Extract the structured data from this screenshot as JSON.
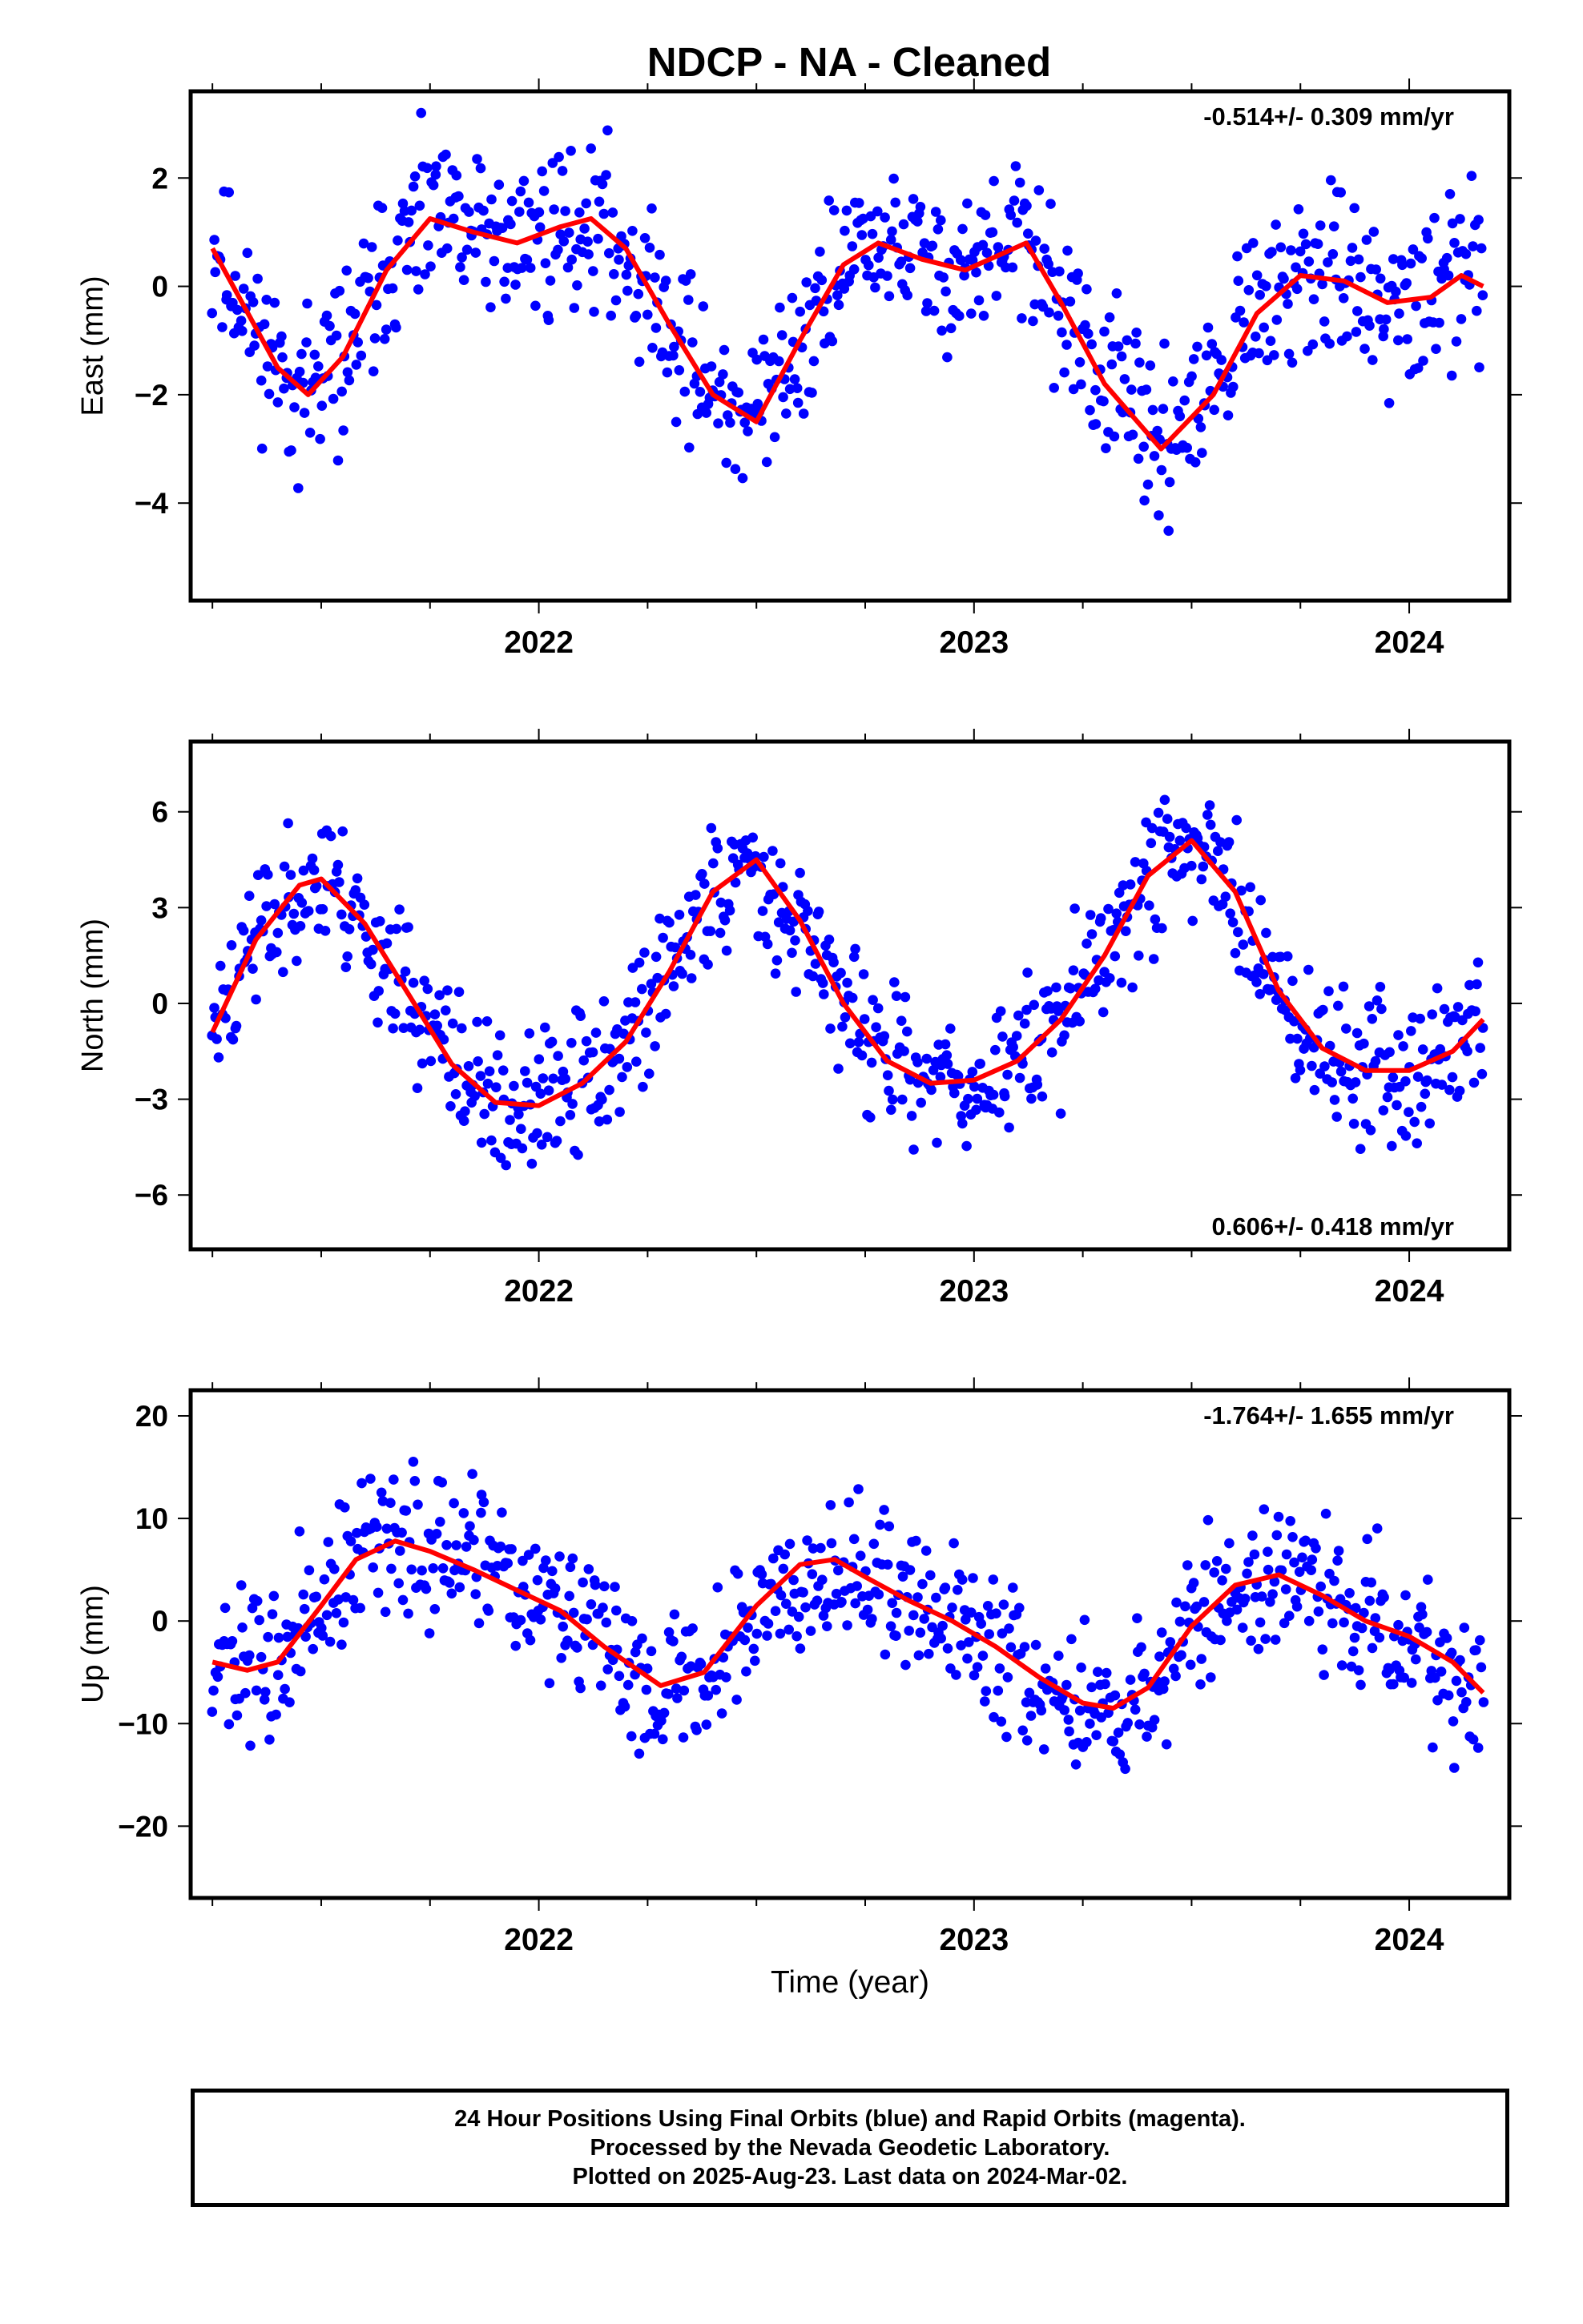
{
  "title": "NDCP  - NA - Cleaned",
  "xlabel": "Time (year)",
  "footer": {
    "line1": "24 Hour Positions Using Final Orbits (blue) and Rapid Orbits (magenta).",
    "line2": "Processed by the Nevada Geodetic Laboratory.",
    "line3": "Plotted on 2025-Aug-23. Last data on 2024-Mar-02."
  },
  "colors": {
    "data": "#0000ff",
    "fit": "#ff0000",
    "frame": "#000000"
  },
  "chart_data": [
    {
      "type": "scatter",
      "ylabel": "East (mm)",
      "rate_text": "-0.514+/- 0.309 mm/yr",
      "rate_position": "top-right",
      "xlim": [
        2021.2,
        2024.23
      ],
      "ylim": [
        -5.8,
        3.6
      ],
      "xticks": [
        2022,
        2023,
        2024
      ],
      "xtick_labels": [
        "2022",
        "2023",
        "2024"
      ],
      "yticks": [
        -4,
        -2,
        0,
        2
      ],
      "ytick_labels": [
        "−4",
        "−2",
        "0",
        "2"
      ],
      "fit": {
        "x": [
          2021.25,
          2021.4,
          2021.47,
          2021.55,
          2021.65,
          2021.75,
          2021.85,
          2021.95,
          2022.05,
          2022.12,
          2022.2,
          2022.3,
          2022.4,
          2022.5,
          2022.6,
          2022.7,
          2022.78,
          2022.88,
          2022.98,
          2023.05,
          2023.12,
          2023.2,
          2023.3,
          2023.43,
          2023.55,
          2023.65,
          2023.75,
          2023.85,
          2023.95,
          2024.05,
          2024.12,
          2024.17
        ],
        "y": [
          0.7,
          -1.5,
          -2.0,
          -1.3,
          0.3,
          1.25,
          1.0,
          0.8,
          1.1,
          1.25,
          0.7,
          -0.7,
          -2.0,
          -2.5,
          -1.0,
          0.4,
          0.8,
          0.5,
          0.3,
          0.55,
          0.8,
          -0.3,
          -1.8,
          -3.0,
          -2.0,
          -0.5,
          0.2,
          0.1,
          -0.3,
          -0.2,
          0.2,
          0.0
        ]
      },
      "scatter": {
        "spread": 0.75,
        "count": 760,
        "seed": 11
      }
    },
    {
      "type": "scatter",
      "ylabel": "North (mm)",
      "rate_text": "0.606+/- 0.418 mm/yr",
      "rate_position": "bottom-right",
      "xlim": [
        2021.2,
        2024.23
      ],
      "ylim": [
        -7.7,
        8.2
      ],
      "xticks": [
        2022,
        2023,
        2024
      ],
      "xtick_labels": [
        "2022",
        "2023",
        "2024"
      ],
      "yticks": [
        -6,
        -3,
        0,
        3,
        6
      ],
      "ytick_labels": [
        "−6",
        "−3",
        "0",
        "3",
        "6"
      ],
      "fit": {
        "x": [
          2021.25,
          2021.35,
          2021.45,
          2021.5,
          2021.6,
          2021.7,
          2021.8,
          2021.9,
          2022.0,
          2022.1,
          2022.2,
          2022.3,
          2022.4,
          2022.5,
          2022.6,
          2022.7,
          2022.8,
          2022.9,
          2023.0,
          2023.1,
          2023.2,
          2023.3,
          2023.4,
          2023.5,
          2023.6,
          2023.7,
          2023.8,
          2023.9,
          2024.0,
          2024.1,
          2024.17
        ],
        "y": [
          -0.9,
          2.0,
          3.7,
          3.9,
          2.5,
          0.3,
          -1.9,
          -3.1,
          -3.2,
          -2.5,
          -1.2,
          1.0,
          3.5,
          4.5,
          2.6,
          0.0,
          -1.8,
          -2.5,
          -2.4,
          -1.8,
          -0.5,
          1.5,
          4.0,
          5.1,
          3.5,
          0.4,
          -1.4,
          -2.1,
          -2.1,
          -1.5,
          -0.5
        ]
      },
      "scatter": {
        "spread": 1.1,
        "count": 780,
        "seed": 23
      }
    },
    {
      "type": "scatter",
      "ylabel": "Up (mm)",
      "rate_text": "-1.764+/- 1.655 mm/yr",
      "rate_position": "top-right",
      "xlim": [
        2021.2,
        2024.23
      ],
      "ylim": [
        -27,
        22.5
      ],
      "xticks": [
        2022,
        2023,
        2024
      ],
      "xtick_labels": [
        "2022",
        "2023",
        "2024"
      ],
      "yticks": [
        -20,
        -10,
        0,
        10,
        20
      ],
      "ytick_labels": [
        "−20",
        "−10",
        "0",
        "10",
        "20"
      ],
      "fit": {
        "x": [
          2021.25,
          2021.33,
          2021.4,
          2021.5,
          2021.58,
          2021.67,
          2021.75,
          2021.85,
          2021.95,
          2022.05,
          2022.15,
          2022.28,
          2022.38,
          2022.5,
          2022.6,
          2022.68,
          2022.75,
          2022.85,
          2022.95,
          2023.05,
          2023.15,
          2023.25,
          2023.32,
          2023.4,
          2023.5,
          2023.6,
          2023.7,
          2023.8,
          2023.9,
          2024.0,
          2024.1,
          2024.17
        ],
        "y": [
          -4.0,
          -4.8,
          -4.0,
          1.5,
          6.0,
          7.8,
          6.8,
          5.0,
          3.0,
          1.0,
          -2.5,
          -6.3,
          -5.0,
          1.5,
          5.5,
          6.0,
          4.3,
          2.0,
          0.0,
          -2.5,
          -5.5,
          -8.0,
          -8.5,
          -6.5,
          -0.5,
          3.5,
          4.5,
          2.5,
          0.0,
          -1.5,
          -4.0,
          -7.0
        ]
      },
      "scatter": {
        "spread": 3.6,
        "count": 760,
        "seed": 37
      }
    }
  ]
}
